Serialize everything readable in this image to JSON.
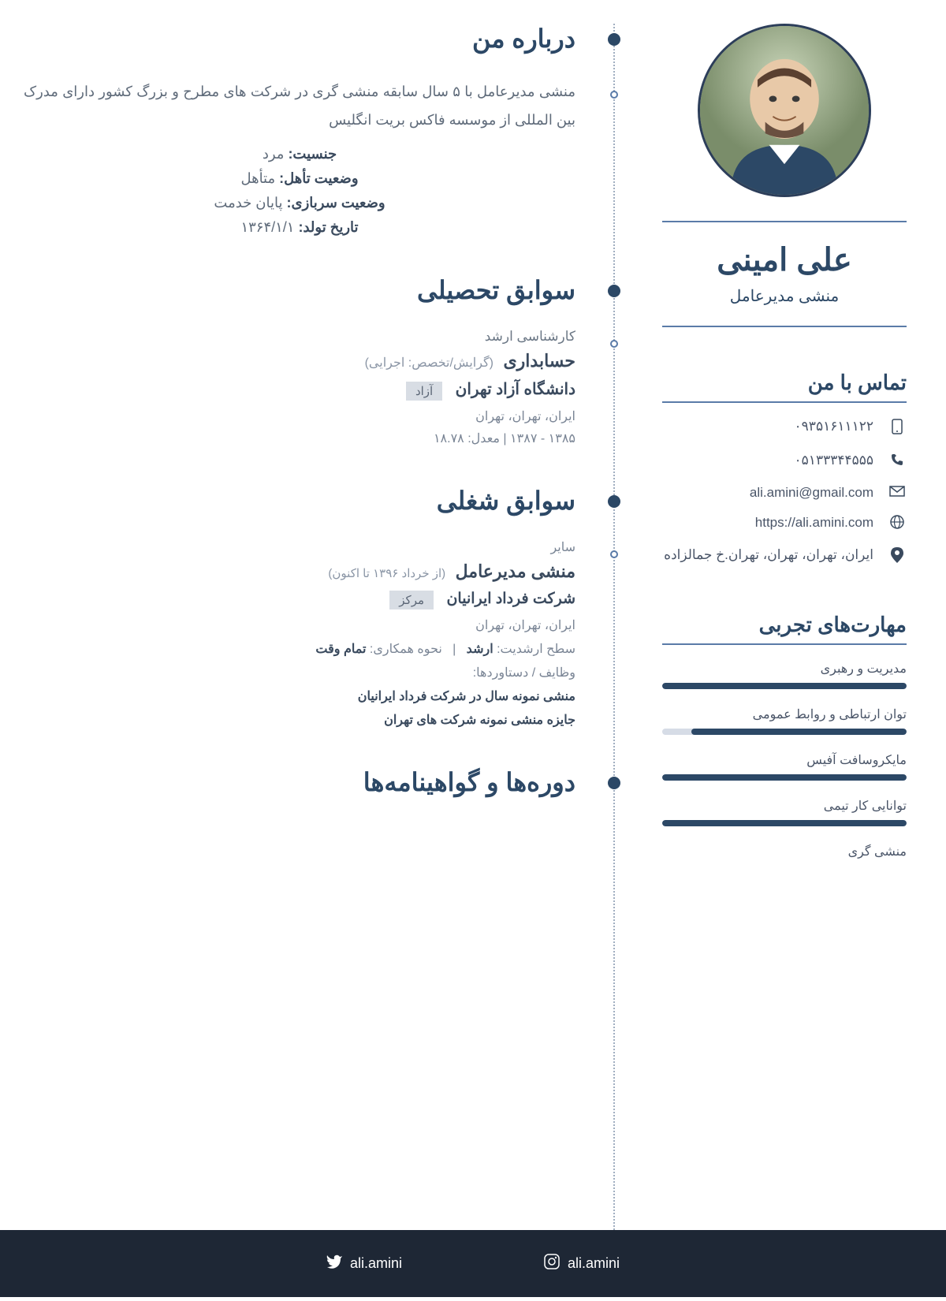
{
  "colors": {
    "primary": "#2c4866",
    "text": "#4a5568",
    "muted": "#7a8595",
    "footer_bg": "#1e2735",
    "bar_bg": "#d6dce6",
    "badge_bg": "#d8dde4"
  },
  "profile": {
    "name": "علی امینی",
    "title": "منشی مدیرعامل"
  },
  "contact": {
    "heading": "تماس با من",
    "mobile": "۰۹۳۵۱۶۱۱۱۲۲",
    "phone": "۰۵۱۳۳۳۴۴۵۵۵",
    "email": "ali.amini@gmail.com",
    "website": "https://ali.amini.com",
    "address": "ایران، تهران، تهران، تهران.خ جمالزاده"
  },
  "skills": {
    "heading": "مهارت‌های تجربی",
    "items": [
      {
        "name": "مدیریت و رهبری",
        "pct": 100
      },
      {
        "name": "توان ارتباطی و روابط عمومی",
        "pct": 88
      },
      {
        "name": "مایکروسافت آفیس",
        "pct": 100
      },
      {
        "name": "توانایی کار تیمی",
        "pct": 100
      },
      {
        "name": "منشی گری",
        "pct": 0
      }
    ]
  },
  "about": {
    "heading": "درباره من",
    "text": "منشی مدیرعامل با ۵ سال سابقه منشی گری در شرکت های مطرح و بزرگ کشور دارای مدرک بین المللی از موسسه فاکس بریت انگلیس",
    "gender_label": "جنسیت:",
    "gender_value": "مرد",
    "marital_label": "وضعیت تأهل:",
    "marital_value": "متأهل",
    "military_label": "وضعیت سربازی:",
    "military_value": "پایان خدمت",
    "dob_label": "تاریخ تولد:",
    "dob_value": "۱۳۶۴/۱/۱"
  },
  "education": {
    "heading": "سوابق تحصیلی",
    "level": "کارشناسی ارشد",
    "field": "حسابداری",
    "spec": "(گرایش/تخصص: اجرایی)",
    "university": "دانشگاه آزاد تهران",
    "badge": "آزاد",
    "location": "ایران، تهران، تهران",
    "years_gpa": "۱۳۸۵ - ۱۳۸۷   |   معدل: ۱۸.۷۸"
  },
  "work": {
    "heading": "سوابق شغلی",
    "category": "سایر",
    "title": "منشی مدیرعامل",
    "dates": "(از خرداد ۱۳۹۶ تا اکنون)",
    "company": "شرکت فرداد ایرانیان",
    "badge": "مرکز",
    "location": "ایران، تهران، تهران",
    "seniority_label": "سطح ارشدیت:",
    "seniority_value": "ارشد",
    "coop_label": "نحوه همکاری:",
    "coop_value": "تمام وقت",
    "achievements_label": "وظایف / دستاوردها:",
    "achievements": [
      "منشی نمونه سال در شرکت فرداد ایرانیان",
      "جایزه منشی نمونه شرکت های تهران"
    ]
  },
  "courses": {
    "heading": "دوره‌ها و گواهینامه‌ها"
  },
  "footer": {
    "instagram": "ali.amini",
    "twitter": "ali.amini"
  }
}
